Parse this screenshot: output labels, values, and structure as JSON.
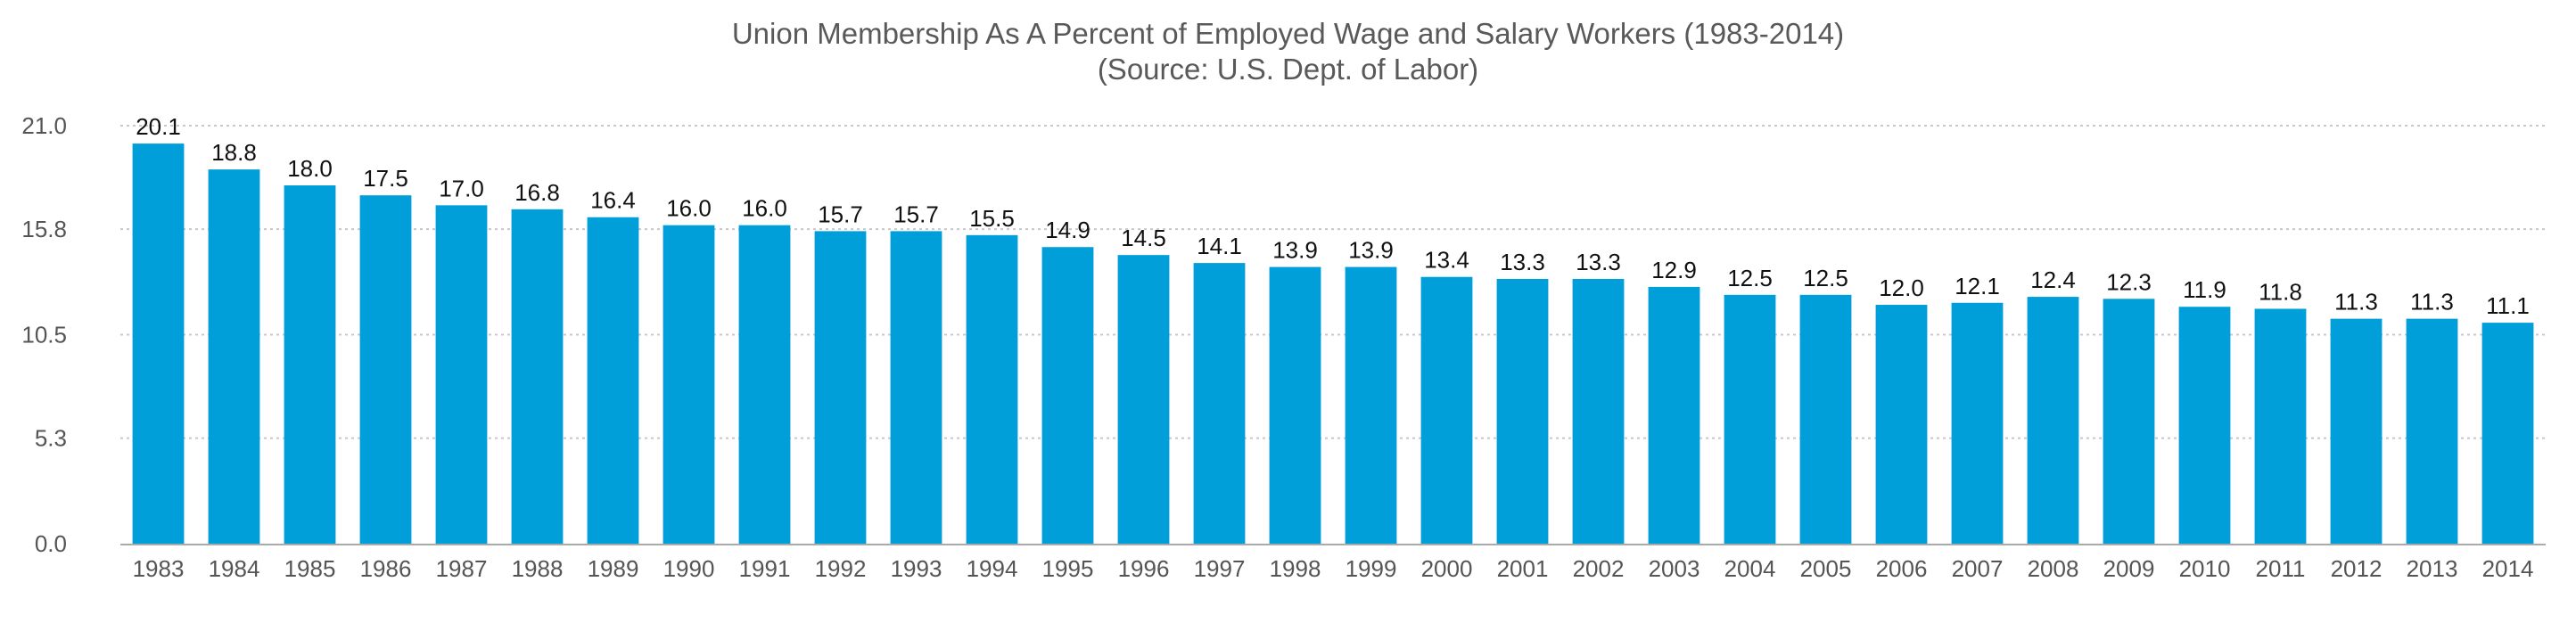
{
  "chart_data": {
    "type": "bar",
    "title": "Union Membership As A Percent of Employed Wage and Salary Workers (1983-2014)",
    "subtitle": "(Source: U.S. Dept. of Labor)",
    "categories": [
      "1983",
      "1984",
      "1985",
      "1986",
      "1987",
      "1988",
      "1989",
      "1990",
      "1991",
      "1992",
      "1993",
      "1994",
      "1995",
      "1996",
      "1997",
      "1998",
      "1999",
      "2000",
      "2001",
      "2002",
      "2003",
      "2004",
      "2005",
      "2006",
      "2007",
      "2008",
      "2009",
      "2010",
      "2011",
      "2012",
      "2013",
      "2014"
    ],
    "values": [
      20.1,
      18.8,
      18.0,
      17.5,
      17.0,
      16.8,
      16.4,
      16.0,
      16.0,
      15.7,
      15.7,
      15.5,
      14.9,
      14.5,
      14.1,
      13.9,
      13.9,
      13.4,
      13.3,
      13.3,
      12.9,
      12.5,
      12.5,
      12.0,
      12.1,
      12.4,
      12.3,
      11.9,
      11.8,
      11.3,
      11.3,
      11.1
    ],
    "y_ticks": [
      "0.0",
      "5.3",
      "10.5",
      "15.8",
      "21.0"
    ],
    "ylim": [
      0,
      21.0
    ],
    "grid": true,
    "legend": "none",
    "colors": {
      "bar": "#009fda",
      "grid": "#c8c8c8"
    }
  }
}
